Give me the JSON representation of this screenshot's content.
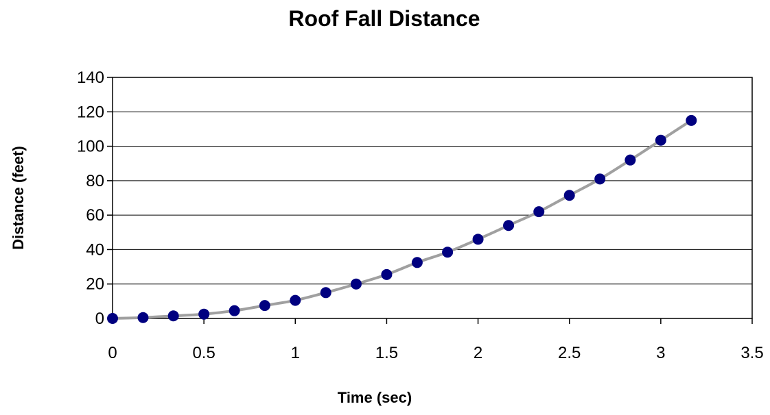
{
  "chart_data": {
    "type": "line",
    "title": "Roof Fall Distance",
    "xlabel": "Time (sec)",
    "ylabel": "Distance (feet)",
    "xlim": [
      0,
      3.5
    ],
    "ylim": [
      0,
      140
    ],
    "x_ticks": [
      "0",
      "0.5",
      "1",
      "1.5",
      "2",
      "2.5",
      "3",
      "3.5"
    ],
    "y_ticks": [
      "0",
      "20",
      "40",
      "60",
      "80",
      "100",
      "120",
      "140"
    ],
    "grid": "horizontal",
    "legend": "none",
    "series": [
      {
        "x": [
          0,
          0.167,
          0.333,
          0.5,
          0.667,
          0.833,
          1.0,
          1.167,
          1.333,
          1.5,
          1.667,
          1.833,
          2.0,
          2.167,
          2.333,
          2.5,
          2.667,
          2.833,
          3.0,
          3.167
        ],
        "y": [
          0,
          0.5,
          1.5,
          2.5,
          4.5,
          7.5,
          10.5,
          15,
          20,
          25.5,
          32.5,
          38.5,
          46,
          54,
          62,
          71.5,
          81,
          92,
          103.5,
          115
        ],
        "line_color": "#a0a0a0",
        "marker_color": "#000080"
      }
    ]
  }
}
